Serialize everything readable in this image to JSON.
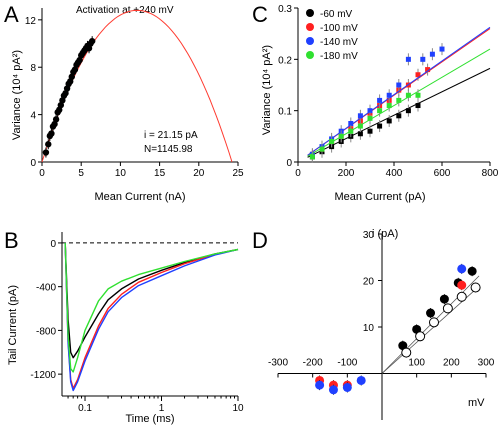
{
  "figure": {
    "panels": {
      "A": {
        "letter": "A"
      },
      "B": {
        "letter": "B"
      },
      "C": {
        "letter": "C"
      },
      "D": {
        "letter": "D"
      }
    }
  },
  "chart_data": [
    {
      "panel": "A",
      "type": "scatter",
      "title": "Activation at +240 mV",
      "xlabel": "Mean Current (nA)",
      "ylabel": "Variance (10⁴ pA²)",
      "xlim": [
        0,
        25
      ],
      "ylim": [
        0,
        13
      ],
      "xticks": [
        "0",
        "5",
        "10",
        "15",
        "20",
        "25"
      ],
      "yticks": [
        "0",
        "4",
        "8",
        "12"
      ],
      "annotations": [
        "i = 21.15 pA",
        "N=1145.98"
      ],
      "points": {
        "x": [
          0.5,
          0.8,
          1.0,
          1.2,
          1.4,
          1.6,
          1.8,
          2.0,
          2.2,
          2.4,
          2.6,
          2.8,
          3.0,
          3.2,
          3.4,
          3.6,
          3.8,
          4.0,
          4.2,
          4.4,
          4.6,
          4.8,
          5.0,
          5.2,
          5.4,
          5.6,
          5.8,
          6.0,
          6.2,
          6.4
        ],
        "y": [
          0.8,
          1.5,
          2.2,
          2.4,
          3.0,
          3.2,
          3.6,
          4.2,
          4.4,
          4.8,
          5.2,
          5.6,
          5.8,
          6.2,
          6.6,
          6.8,
          7.2,
          7.6,
          7.8,
          8.2,
          8.4,
          8.6,
          9.0,
          9.2,
          9.4,
          9.6,
          9.8,
          9.6,
          10.0,
          10.2
        ]
      },
      "fit": {
        "type": "parabola",
        "i_pA": 21.15,
        "N": 1145.98,
        "color": "#ff3b30",
        "x_range": [
          0,
          24.24
        ],
        "peak": [
          12.12,
          12.8
        ]
      },
      "point_color": "#000000"
    },
    {
      "panel": "B",
      "type": "line",
      "xlabel": "Time (ms)",
      "ylabel": "Tail Current (pA)",
      "xscale": "log",
      "xlim": [
        0.05,
        10
      ],
      "ylim": [
        -1400,
        100
      ],
      "xticks": [
        "0.1",
        "1",
        "10"
      ],
      "yticks": [
        "0",
        "-400",
        "-800",
        "-1200"
      ],
      "zero_line": "dashed",
      "series": [
        {
          "color": "#000000",
          "x": [
            0.055,
            0.06,
            0.065,
            0.07,
            0.08,
            0.1,
            0.15,
            0.2,
            0.3,
            0.5,
            1,
            2,
            5,
            10
          ],
          "y": [
            0,
            -700,
            -1000,
            -1050,
            -990,
            -860,
            -650,
            -520,
            -420,
            -330,
            -250,
            -180,
            -100,
            -60
          ]
        },
        {
          "color": "#ff2020",
          "x": [
            0.055,
            0.06,
            0.065,
            0.07,
            0.08,
            0.1,
            0.15,
            0.2,
            0.3,
            0.5,
            1,
            2,
            5,
            10
          ],
          "y": [
            0,
            -900,
            -1250,
            -1330,
            -1250,
            -1050,
            -760,
            -600,
            -470,
            -360,
            -270,
            -190,
            -105,
            -60
          ]
        },
        {
          "color": "#2040ff",
          "x": [
            0.055,
            0.06,
            0.065,
            0.07,
            0.08,
            0.1,
            0.15,
            0.2,
            0.3,
            0.5,
            1,
            2,
            5,
            10
          ],
          "y": [
            0,
            -920,
            -1270,
            -1350,
            -1270,
            -1080,
            -790,
            -630,
            -500,
            -390,
            -300,
            -210,
            -110,
            -60
          ]
        },
        {
          "color": "#30e030",
          "x": [
            0.055,
            0.06,
            0.065,
            0.07,
            0.08,
            0.1,
            0.15,
            0.2,
            0.3,
            0.5,
            1,
            2,
            5,
            10
          ],
          "y": [
            0,
            -850,
            -1150,
            -1180,
            -1050,
            -800,
            -530,
            -420,
            -350,
            -290,
            -230,
            -170,
            -100,
            -60
          ]
        }
      ]
    },
    {
      "panel": "C",
      "type": "scatter",
      "xlabel": "Mean Current (pA)",
      "ylabel": "Variance (10⁴ pA²)",
      "xlim": [
        0,
        800
      ],
      "ylim": [
        0,
        0.3
      ],
      "xticks": [
        "0",
        "200",
        "400",
        "600",
        "800"
      ],
      "yticks": [
        "0",
        "0.1",
        "0.2",
        "0.3"
      ],
      "legend_position": "top-left",
      "series": [
        {
          "name": "-60 mV",
          "color": "#000000",
          "x": [
            60,
            100,
            140,
            180,
            220,
            260,
            300,
            340,
            380,
            420,
            460,
            500
          ],
          "y": [
            0.01,
            0.02,
            0.03,
            0.04,
            0.05,
            0.055,
            0.06,
            0.07,
            0.08,
            0.09,
            0.1,
            0.11
          ],
          "fit_slope": 0.000228
        },
        {
          "name": "-100 mV",
          "color": "#ff2020",
          "x": [
            60,
            100,
            140,
            180,
            220,
            260,
            300,
            340,
            380,
            420,
            460,
            500,
            540
          ],
          "y": [
            0.015,
            0.025,
            0.04,
            0.05,
            0.065,
            0.08,
            0.095,
            0.11,
            0.12,
            0.14,
            0.15,
            0.17,
            0.18
          ],
          "fit_slope": 0.000325
        },
        {
          "name": "-140 mV",
          "color": "#2040ff",
          "x": [
            60,
            100,
            140,
            180,
            220,
            260,
            300,
            340,
            380,
            420,
            460,
            520,
            560,
            600
          ],
          "y": [
            0.015,
            0.03,
            0.045,
            0.06,
            0.075,
            0.09,
            0.1,
            0.12,
            0.13,
            0.15,
            0.2,
            0.2,
            0.21,
            0.22
          ],
          "fit_slope": 0.000328
        },
        {
          "name": "-180 mV",
          "color": "#30e030",
          "x": [
            60,
            100,
            140,
            180,
            220,
            260,
            300,
            340,
            380,
            420,
            460,
            500
          ],
          "y": [
            0.01,
            0.025,
            0.04,
            0.05,
            0.06,
            0.07,
            0.085,
            0.1,
            0.11,
            0.12,
            0.13,
            0.13
          ],
          "fit_slope": 0.000275
        }
      ]
    },
    {
      "panel": "D",
      "type": "scatter",
      "xlabel": "mV",
      "ylabel": "i (pA)",
      "xlim": [
        -300,
        300
      ],
      "ylim": [
        -10,
        30
      ],
      "xticks": [
        "-300",
        "-200",
        "-100",
        "100",
        "200",
        "300"
      ],
      "yticks": [
        "10",
        "20",
        "30"
      ],
      "series": [
        {
          "style": "filled",
          "color": "#000000",
          "x": [
            60,
            100,
            140,
            180,
            220,
            260
          ],
          "y": [
            6,
            9.5,
            13,
            16,
            19.5,
            22
          ]
        },
        {
          "style": "open",
          "color": "#000000",
          "x": [
            70,
            110,
            150,
            190,
            230,
            270
          ],
          "y": [
            4.5,
            8,
            11,
            14,
            16.5,
            18.5
          ]
        },
        {
          "style": "filled",
          "color": "#ff2020",
          "x": [
            -180,
            -140,
            -100,
            230
          ],
          "y": [
            -1.5,
            -2.5,
            -2.5,
            19
          ]
        },
        {
          "style": "filled",
          "color": "#2040ff",
          "x": [
            -180,
            -140,
            -100,
            -60,
            230
          ],
          "y": [
            -2.5,
            -3.5,
            -3,
            -1.5,
            22.5
          ]
        }
      ],
      "fits": [
        {
          "x_range": [
            0,
            280
          ],
          "slope": 0.075
        },
        {
          "x_range": [
            0,
            280
          ],
          "slope": 0.067
        }
      ]
    }
  ]
}
